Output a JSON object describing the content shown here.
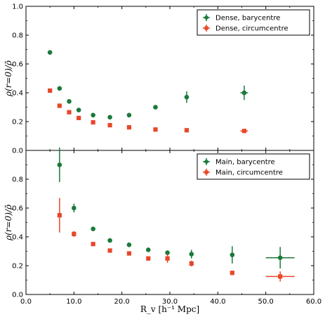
{
  "chart_data": [
    {
      "type": "scatter",
      "panel": "top",
      "ylabel": "ρ(r=0)/ρ̄",
      "xlabel": "",
      "xlim": [
        0,
        60
      ],
      "ylim": [
        0,
        1.0
      ],
      "yticks": [
        "0.0",
        "0.2",
        "0.4",
        "0.6",
        "0.8",
        "1.0"
      ],
      "legend": "top-right",
      "grid": false,
      "series": [
        {
          "name": "Dense, barycentre",
          "color": "#1a7a3a",
          "marker": "circle",
          "points": [
            {
              "x": 5.0,
              "y": 0.68,
              "yerr": 0.015
            },
            {
              "x": 7.0,
              "y": 0.43,
              "yerr": 0.008
            },
            {
              "x": 9.0,
              "y": 0.34,
              "yerr": 0.006
            },
            {
              "x": 11.0,
              "y": 0.28,
              "yerr": 0.006
            },
            {
              "x": 14.0,
              "y": 0.245,
              "yerr": 0.006
            },
            {
              "x": 17.5,
              "y": 0.23,
              "yerr": 0.007
            },
            {
              "x": 21.5,
              "y": 0.245,
              "yerr": 0.008
            },
            {
              "x": 27.0,
              "y": 0.3,
              "yerr": 0.015
            },
            {
              "x": 33.5,
              "y": 0.37,
              "yerr": 0.04
            },
            {
              "x": 45.5,
              "y": 0.4,
              "yerr": 0.05,
              "xerr": 0.8
            }
          ]
        },
        {
          "name": "Dense, circumcentre",
          "color": "#e8472a",
          "marker": "square",
          "points": [
            {
              "x": 5.0,
              "y": 0.415,
              "yerr": 0.01
            },
            {
              "x": 7.0,
              "y": 0.31,
              "yerr": 0.006
            },
            {
              "x": 9.0,
              "y": 0.265,
              "yerr": 0.005
            },
            {
              "x": 11.0,
              "y": 0.225,
              "yerr": 0.005
            },
            {
              "x": 14.0,
              "y": 0.195,
              "yerr": 0.004
            },
            {
              "x": 17.5,
              "y": 0.175,
              "yerr": 0.004
            },
            {
              "x": 21.5,
              "y": 0.16,
              "yerr": 0.004
            },
            {
              "x": 27.0,
              "y": 0.145,
              "yerr": 0.004
            },
            {
              "x": 33.5,
              "y": 0.14,
              "yerr": 0.005
            },
            {
              "x": 45.5,
              "y": 0.135,
              "yerr": 0.008,
              "xerr": 0.8
            }
          ]
        }
      ]
    },
    {
      "type": "scatter",
      "panel": "bottom",
      "ylabel": "ρ(r=0)/ρ̄",
      "xlabel": "R_v [h⁻¹ Mpc]",
      "xlim": [
        0,
        60
      ],
      "ylim": [
        0,
        1.0
      ],
      "xticks": [
        "0.0",
        "10.0",
        "20.0",
        "30.0",
        "40.0",
        "50.0",
        "60.0"
      ],
      "yticks": [
        "0.0",
        "0.2",
        "0.4",
        "0.6",
        "0.8"
      ],
      "legend": "top-right",
      "grid": false,
      "series": [
        {
          "name": "Main, barycentre",
          "color": "#1a7a3a",
          "marker": "circle",
          "points": [
            {
              "x": 7.0,
              "y": 0.9,
              "yerr": 0.12
            },
            {
              "x": 10.0,
              "y": 0.6,
              "yerr": 0.03
            },
            {
              "x": 14.0,
              "y": 0.455,
              "yerr": 0.01
            },
            {
              "x": 17.5,
              "y": 0.375,
              "yerr": 0.008
            },
            {
              "x": 21.5,
              "y": 0.345,
              "yerr": 0.012
            },
            {
              "x": 25.5,
              "y": 0.31,
              "yerr": 0.01
            },
            {
              "x": 29.5,
              "y": 0.29,
              "yerr": 0.015
            },
            {
              "x": 34.5,
              "y": 0.28,
              "yerr": 0.03
            },
            {
              "x": 43.0,
              "y": 0.275,
              "yerr": 0.06
            },
            {
              "x": 53.0,
              "y": 0.255,
              "yerr": 0.075,
              "xerr": 3.0
            }
          ]
        },
        {
          "name": "Main, circumcentre",
          "color": "#e8472a",
          "marker": "square",
          "points": [
            {
              "x": 7.0,
              "y": 0.55,
              "yerr": 0.12
            },
            {
              "x": 10.0,
              "y": 0.42,
              "yerr": 0.02
            },
            {
              "x": 14.0,
              "y": 0.35,
              "yerr": 0.008
            },
            {
              "x": 17.5,
              "y": 0.305,
              "yerr": 0.006
            },
            {
              "x": 21.5,
              "y": 0.285,
              "yerr": 0.007
            },
            {
              "x": 25.5,
              "y": 0.25,
              "yerr": 0.008
            },
            {
              "x": 29.5,
              "y": 0.25,
              "yerr": 0.03
            },
            {
              "x": 34.5,
              "y": 0.215,
              "yerr": 0.02
            },
            {
              "x": 43.0,
              "y": 0.15,
              "yerr": 0.015
            },
            {
              "x": 53.0,
              "y": 0.125,
              "yerr": 0.035,
              "xerr": 3.0
            }
          ]
        }
      ]
    }
  ]
}
